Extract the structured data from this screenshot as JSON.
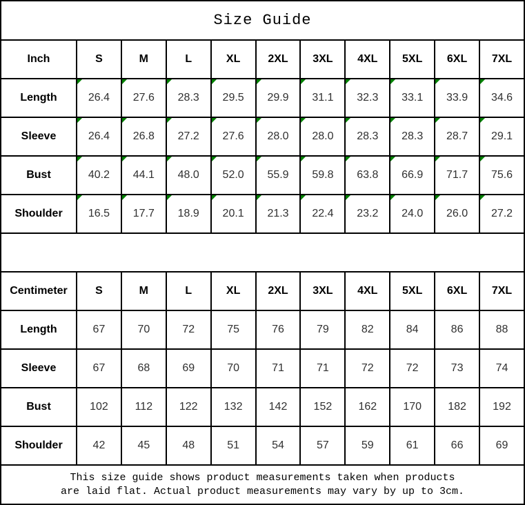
{
  "title": "Size Guide",
  "sizes": [
    "S",
    "M",
    "L",
    "XL",
    "2XL",
    "3XL",
    "4XL",
    "5XL",
    "6XL",
    "7XL"
  ],
  "inch_table": {
    "unit_label": "Inch",
    "cell_corner_marker": true,
    "rows": [
      {
        "label": "Length",
        "values": [
          "26.4",
          "27.6",
          "28.3",
          "29.5",
          "29.9",
          "31.1",
          "32.3",
          "33.1",
          "33.9",
          "34.6"
        ]
      },
      {
        "label": "Sleeve",
        "values": [
          "26.4",
          "26.8",
          "27.2",
          "27.6",
          "28.0",
          "28.0",
          "28.3",
          "28.3",
          "28.7",
          "29.1"
        ]
      },
      {
        "label": "Bust",
        "values": [
          "40.2",
          "44.1",
          "48.0",
          "52.0",
          "55.9",
          "59.8",
          "63.8",
          "66.9",
          "71.7",
          "75.6"
        ]
      },
      {
        "label": "Shoulder",
        "values": [
          "16.5",
          "17.7",
          "18.9",
          "20.1",
          "21.3",
          "22.4",
          "23.2",
          "24.0",
          "26.0",
          "27.2"
        ]
      }
    ]
  },
  "cm_table": {
    "unit_label": "Centimeter",
    "cell_corner_marker": false,
    "rows": [
      {
        "label": "Length",
        "values": [
          "67",
          "70",
          "72",
          "75",
          "76",
          "79",
          "82",
          "84",
          "86",
          "88"
        ]
      },
      {
        "label": "Sleeve",
        "values": [
          "67",
          "68",
          "69",
          "70",
          "71",
          "71",
          "72",
          "72",
          "73",
          "74"
        ]
      },
      {
        "label": "Bust",
        "values": [
          "102",
          "112",
          "122",
          "132",
          "142",
          "152",
          "162",
          "170",
          "182",
          "192"
        ]
      },
      {
        "label": "Shoulder",
        "values": [
          "42",
          "45",
          "48",
          "51",
          "54",
          "57",
          "59",
          "61",
          "66",
          "69"
        ]
      }
    ]
  },
  "footer": {
    "line1": "This size guide shows product measurements taken when products",
    "line2": "are laid flat. Actual product measurements may vary by up to 3cm."
  },
  "colors": {
    "border": "#000000",
    "corner_marker": "#018001",
    "header_text": "#000000",
    "value_text": "#303030",
    "background": "#ffffff"
  }
}
